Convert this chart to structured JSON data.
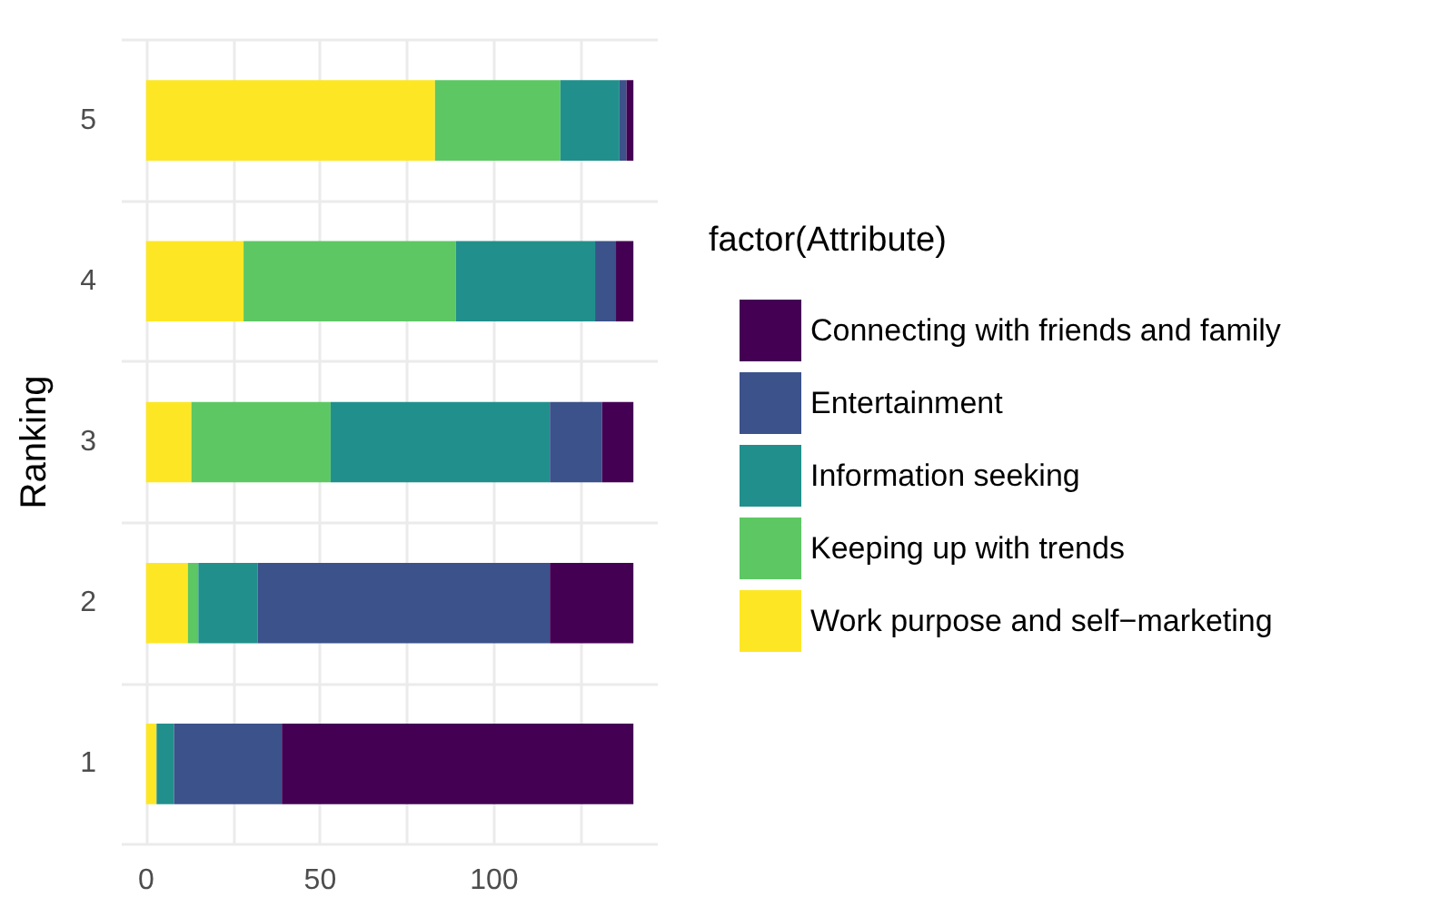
{
  "chart_data": {
    "type": "bar",
    "orientation": "horizontal",
    "stacked": true,
    "categories": [
      "5",
      "4",
      "3",
      "2",
      "1"
    ],
    "series": [
      {
        "name": "Work purpose and self−marketing",
        "color": "#fde725",
        "values": [
          83,
          28,
          13,
          12,
          3
        ]
      },
      {
        "name": "Keeping up with trends",
        "color": "#5dc863",
        "values": [
          36,
          61,
          40,
          3,
          0
        ]
      },
      {
        "name": "Information seeking",
        "color": "#21908c",
        "values": [
          17,
          40,
          63,
          17,
          5
        ]
      },
      {
        "name": "Entertainment",
        "color": "#3b528b",
        "values": [
          2,
          6,
          15,
          84,
          31
        ]
      },
      {
        "name": "Connecting with friends and family",
        "color": "#440154",
        "values": [
          2,
          5,
          9,
          24,
          101
        ]
      }
    ],
    "ylabel": "Ranking",
    "legend_title": "factor(Attribute)",
    "legend": "right",
    "xlim": [
      -7,
      147
    ],
    "xticks": [
      0,
      {
        "value": 25,
        "label": null
      },
      50,
      {
        "value": 75,
        "label": null
      },
      100,
      {
        "value": 125,
        "label": null
      }
    ],
    "grid": true
  }
}
